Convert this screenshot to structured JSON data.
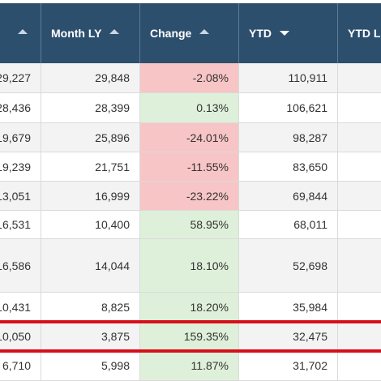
{
  "columns": [
    {
      "label": "",
      "sort": "asc"
    },
    {
      "label": "Month LY",
      "sort": "asc"
    },
    {
      "label": "Change",
      "sort": "asc"
    },
    {
      "label": "YTD",
      "sort": "desc"
    },
    {
      "label": "YTD L",
      "sort": "none"
    }
  ],
  "rows": [
    {
      "month": "29,227",
      "month_ly": "29,848",
      "change": "-2.08%",
      "change_dir": "neg",
      "ytd": "110,911",
      "ytd_ly": ""
    },
    {
      "month": "28,436",
      "month_ly": "28,399",
      "change": "0.13%",
      "change_dir": "pos",
      "ytd": "106,621",
      "ytd_ly": ""
    },
    {
      "month": "19,679",
      "month_ly": "25,896",
      "change": "-24.01%",
      "change_dir": "neg",
      "ytd": "98,287",
      "ytd_ly": ""
    },
    {
      "month": "19,239",
      "month_ly": "21,751",
      "change": "-11.55%",
      "change_dir": "neg",
      "ytd": "83,650",
      "ytd_ly": ""
    },
    {
      "month": "13,051",
      "month_ly": "16,999",
      "change": "-23.22%",
      "change_dir": "neg",
      "ytd": "69,844",
      "ytd_ly": ""
    },
    {
      "month": "16,531",
      "month_ly": "10,400",
      "change": "58.95%",
      "change_dir": "pos",
      "ytd": "68,011",
      "ytd_ly": ""
    },
    {
      "month": "16,586",
      "month_ly": "14,044",
      "change": "18.10%",
      "change_dir": "pos",
      "ytd": "52,698",
      "ytd_ly": ""
    },
    {
      "month": "10,431",
      "month_ly": "8,825",
      "change": "18.20%",
      "change_dir": "pos",
      "ytd": "35,984",
      "ytd_ly": ""
    },
    {
      "month": "10,050",
      "month_ly": "3,875",
      "change": "159.35%",
      "change_dir": "pos",
      "ytd": "32,475",
      "ytd_ly": "",
      "highlighted": true
    },
    {
      "month": "6,710",
      "month_ly": "5,998",
      "change": "11.87%",
      "change_dir": "pos",
      "ytd": "31,702",
      "ytd_ly": ""
    }
  ],
  "colors": {
    "header_bg": "#2d4f6e",
    "negative_change": "#f8c5c6",
    "positive_change": "#dff0da",
    "highlight_outline": "#d6101a"
  }
}
